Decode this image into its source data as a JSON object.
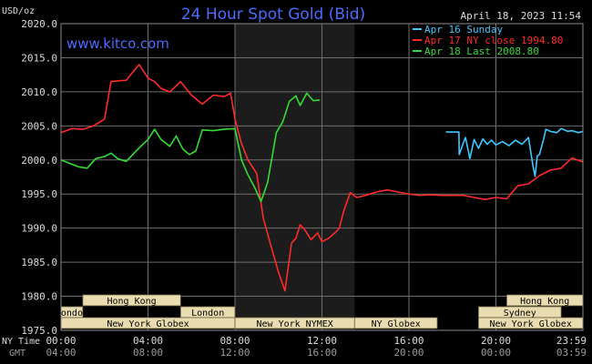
{
  "chart_data": {
    "type": "line",
    "title": "24 Hour Spot Gold (Bid)",
    "ylabel": "USD/oz",
    "date": "April 18, 2023 11:54",
    "brand": "www.kitco.com",
    "ylim": [
      1975,
      2020
    ],
    "xlim": [
      0,
      24
    ],
    "y_ticks": [
      1975,
      1980,
      1985,
      1990,
      1995,
      2000,
      2005,
      2010,
      2015,
      2020
    ],
    "y_tick_labels": [
      "1975.0",
      "1980.0",
      "1985.0",
      "1990.0",
      "1995.0",
      "2000.0",
      "2005.0",
      "2010.0",
      "2015.0",
      "2020.0"
    ],
    "x_ticks": [
      0,
      4,
      8,
      12,
      16,
      20,
      24
    ],
    "x_tick_labels_ny": [
      "00:00",
      "04:00",
      "08:00",
      "12:00",
      "16:00",
      "20:00",
      "23:59"
    ],
    "x_tick_labels_gmt": [
      "04:00",
      "08:00",
      "12:00",
      "16:00",
      "20:00",
      "00:00",
      "03:59"
    ],
    "x_row_labels": [
      "NY Time",
      "GMT"
    ],
    "legend_position": "top-right",
    "session_shading": [
      8,
      13.5
    ],
    "colors": {
      "background": "#000000",
      "plot_bg": "#000000",
      "session_bg": "#1c1c1c",
      "grid": "#6e6e6e",
      "title": "#4a6cff",
      "text": "#dcdcdc",
      "bar_fill": "#e8dcb0",
      "bar_text": "#000000"
    },
    "markets": [
      {
        "name": "Hong Kong",
        "row": 0,
        "start": 1.0,
        "end": 5.5
      },
      {
        "name": "Hong Kong",
        "row": 0,
        "start": 20.5,
        "end": 24
      },
      {
        "name": "London",
        "row": 1,
        "start": 0,
        "end": 1.0
      },
      {
        "name": "London",
        "row": 1,
        "start": 5.5,
        "end": 8.0
      },
      {
        "name": "Sydney",
        "row": 1,
        "start": 19.2,
        "end": 23.0
      },
      {
        "name": "New York Globex",
        "row": 2,
        "start": 0,
        "end": 8.0
      },
      {
        "name": "New York NYMEX",
        "row": 2,
        "start": 8.0,
        "end": 13.5
      },
      {
        "name": "NY Globex",
        "row": 2,
        "start": 13.5,
        "end": 17.3
      },
      {
        "name": "New York Globex",
        "row": 2,
        "start": 19.2,
        "end": 24
      }
    ],
    "series": [
      {
        "name": "Apr 16 Sunday",
        "color": "#40c8ff",
        "x": [
          17.7,
          18.3,
          18.31,
          18.5,
          18.6,
          18.8,
          19.0,
          19.2,
          19.4,
          19.6,
          19.8,
          20.0,
          20.3,
          20.6,
          20.9,
          21.2,
          21.5,
          21.7,
          21.8,
          21.9,
          22.0,
          22.2,
          22.3,
          22.5,
          22.8,
          23.0,
          23.3,
          23.5,
          23.8,
          24.0
        ],
        "y": [
          2004.1,
          2004.1,
          2000.8,
          2002.5,
          2003.3,
          2000.2,
          2003.0,
          2001.7,
          2003.1,
          2002.3,
          2002.9,
          2002.2,
          2002.7,
          2002.1,
          2002.9,
          2002.3,
          2003.3,
          1999.2,
          1997.6,
          2000.6,
          2000.8,
          2003.1,
          2004.5,
          2004.2,
          2004.0,
          2004.6,
          2004.2,
          2004.3,
          2004.0,
          2004.2
        ]
      },
      {
        "name": "Apr 17 NY close 1994.80",
        "color": "#ff2a2a",
        "x": [
          0,
          0.5,
          1.0,
          1.5,
          2.0,
          2.3,
          2.6,
          3.0,
          3.3,
          3.6,
          4.0,
          4.3,
          4.6,
          5.0,
          5.5,
          6.0,
          6.5,
          7.0,
          7.5,
          7.8,
          8.0,
          8.3,
          8.6,
          9.0,
          9.3,
          9.6,
          10.0,
          10.3,
          10.6,
          10.8,
          11.0,
          11.2,
          11.5,
          11.8,
          12.0,
          12.3,
          12.6,
          12.8,
          13.0,
          13.3,
          13.6,
          14.0,
          14.5,
          15.0,
          15.5,
          16.0,
          16.5,
          17.0,
          17.5,
          18.0,
          18.5,
          19.0,
          19.5,
          20.0,
          20.5,
          21.0,
          21.5,
          22.0,
          22.5,
          23.0,
          23.5,
          24.0
        ],
        "y": [
          2004.0,
          2004.6,
          2004.5,
          2005.0,
          2006.0,
          2011.5,
          2011.6,
          2011.7,
          2012.9,
          2014.0,
          2012.0,
          2011.5,
          2010.5,
          2010.0,
          2011.5,
          2009.5,
          2008.2,
          2009.5,
          2009.3,
          2009.8,
          2006.0,
          2002.4,
          2000.0,
          1998.0,
          1991.5,
          1988.0,
          1983.5,
          1980.8,
          1987.8,
          1988.5,
          1990.5,
          1989.8,
          1988.3,
          1989.3,
          1988.0,
          1988.5,
          1989.3,
          1990.0,
          1992.5,
          1995.2,
          1994.5,
          1994.8,
          1995.3,
          1995.6,
          1995.3,
          1995.0,
          1994.8,
          1994.9,
          1994.8,
          1994.8,
          1994.8,
          1994.5,
          1994.2,
          1994.5,
          1994.3,
          1996.2,
          1996.5,
          1997.7,
          1998.5,
          1998.8,
          2000.3,
          1999.7
        ]
      },
      {
        "name": "Apr 18 Last 2008.80",
        "color": "#33dd33",
        "x": [
          0,
          0.4,
          0.8,
          1.2,
          1.6,
          2.0,
          2.3,
          2.6,
          3.0,
          3.3,
          3.6,
          4.0,
          4.3,
          4.6,
          5.0,
          5.3,
          5.6,
          5.9,
          6.2,
          6.5,
          7.0,
          7.5,
          8.0,
          8.3,
          8.6,
          8.9,
          9.2,
          9.5,
          9.7,
          9.9,
          10.2,
          10.5,
          10.8,
          11.0,
          11.3,
          11.6,
          11.9
        ],
        "y": [
          2000.0,
          1999.5,
          1999.0,
          1998.8,
          2000.2,
          2000.5,
          2001.0,
          2000.2,
          1999.8,
          2000.8,
          2001.8,
          2003.0,
          2004.5,
          2003.0,
          2002.0,
          2003.5,
          2001.6,
          2000.8,
          2001.3,
          2004.4,
          2004.3,
          2004.5,
          2004.6,
          2000.0,
          1997.8,
          1996.0,
          1993.9,
          1996.7,
          2000.3,
          2004.0,
          2005.6,
          2008.6,
          2009.4,
          2008.0,
          2009.8,
          2008.7,
          2008.8
        ]
      }
    ]
  }
}
